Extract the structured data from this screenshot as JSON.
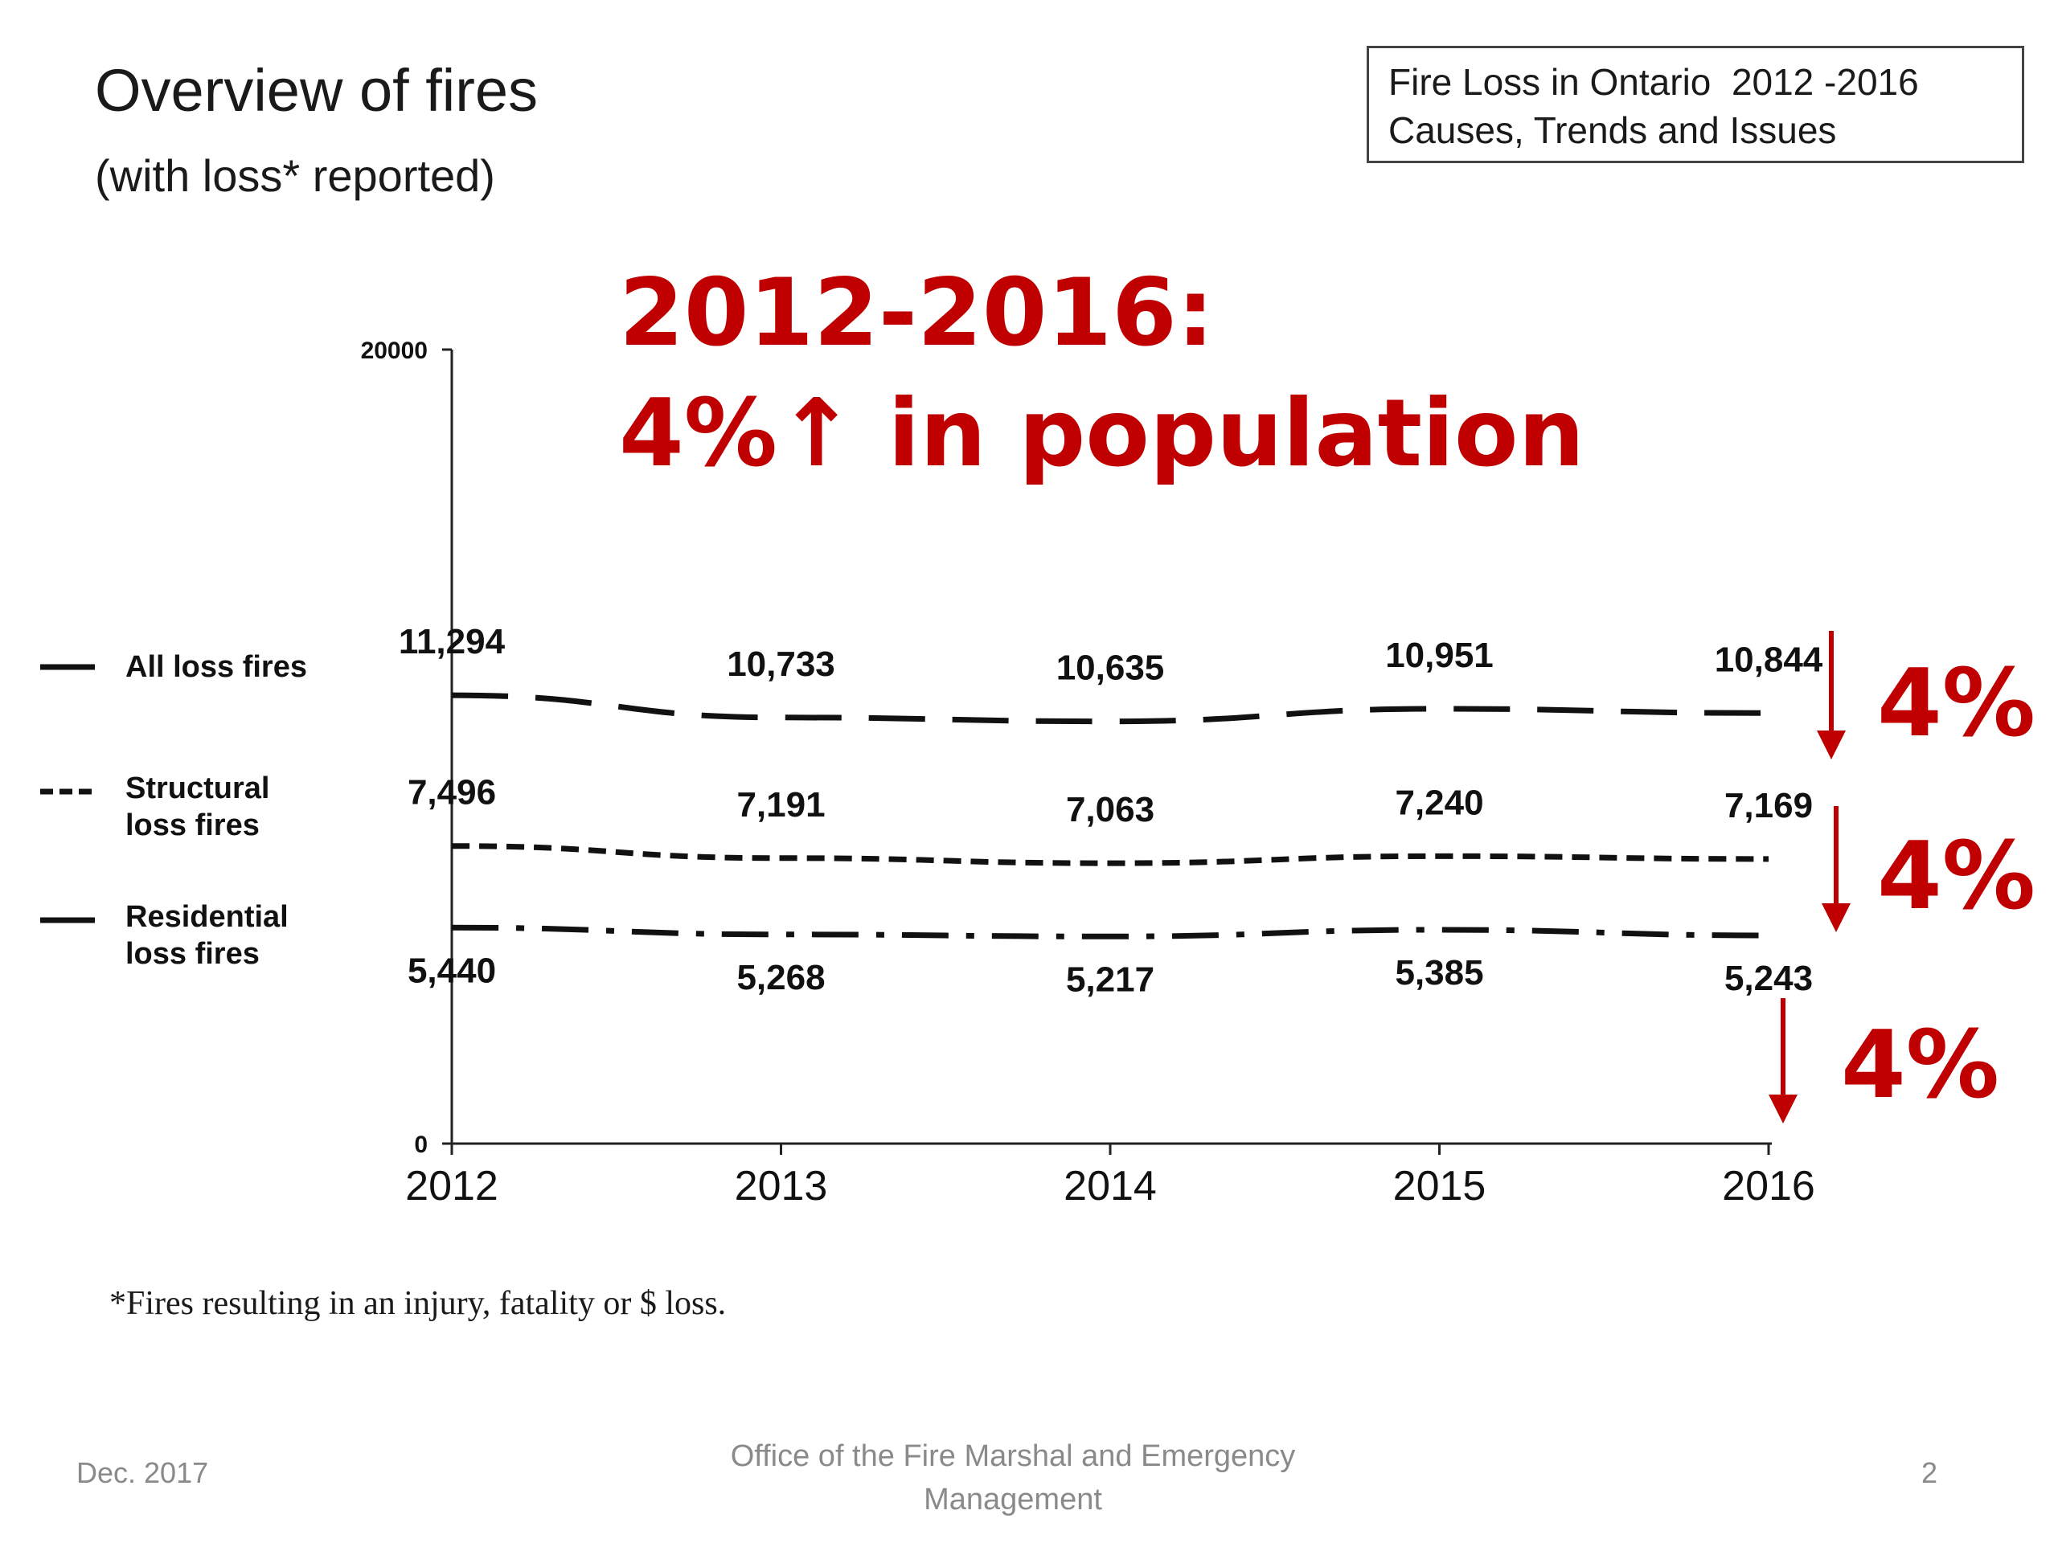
{
  "slide": {
    "title": "Overview of fires",
    "subtitle": "(with loss* reported)",
    "box_line1": "Fire Loss in Ontario  2012 -2016",
    "box_line2": "Causes, Trends and Issues",
    "callout_line1": "2012-2016:",
    "callout_line2": "4%↑ in population",
    "footnote": "*Fires resulting in an injury, fatality or $ loss.",
    "footer_left": "Dec. 2017",
    "footer_center_line1": "Office of the Fire Marshal and Emergency",
    "footer_center_line2": "Management",
    "footer_right": "2"
  },
  "colors": {
    "accent": "#c00000",
    "line": "#111111",
    "footer": "#8a8a8a"
  },
  "chart_data": {
    "type": "line",
    "x": [
      "2012",
      "2013",
      "2014",
      "2015",
      "2016"
    ],
    "ylim": [
      0,
      20000
    ],
    "yticks": [
      "0",
      "20000"
    ],
    "grid": false,
    "legend_position": "left",
    "series": [
      {
        "name": "All loss fires",
        "values": [
          11294,
          10733,
          10635,
          10951,
          10844
        ],
        "labels": [
          "11,294",
          "10,733",
          "10,635",
          "10,951",
          "10,844"
        ],
        "dash": "long-dash",
        "change": "4%",
        "direction": "down"
      },
      {
        "name": "Structural loss fires",
        "values": [
          7496,
          7191,
          7063,
          7240,
          7169
        ],
        "labels": [
          "7,496",
          "7,191",
          "7,063",
          "7,240",
          "7,169"
        ],
        "dash": "short-dash",
        "change": "4%",
        "direction": "down"
      },
      {
        "name": "Residential loss fires",
        "values": [
          5440,
          5268,
          5217,
          5385,
          5243
        ],
        "labels": [
          "5,440",
          "5,268",
          "5,217",
          "5,385",
          "5,243"
        ],
        "dash": "dash-dot",
        "change": "4%",
        "direction": "down"
      }
    ]
  }
}
